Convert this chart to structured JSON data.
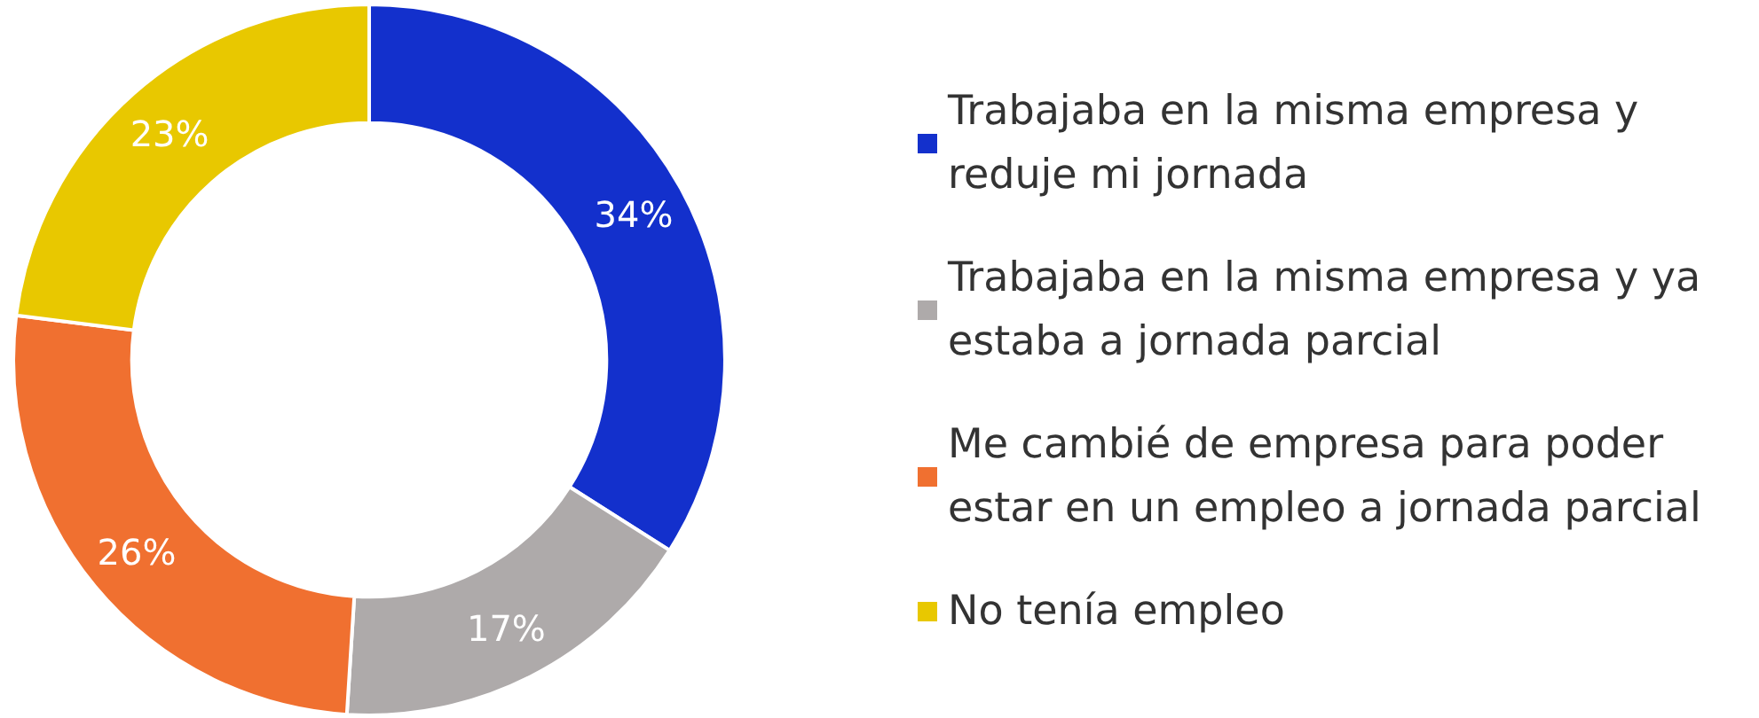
{
  "chart_data": {
    "type": "donut",
    "categories": [
      "Trabajaba en la misma empresa y reduje mi jornada",
      "Trabajaba en la misma empresa y ya estaba a jornada parcial",
      "Me cambié de empresa para poder estar en un empleo a jornada parcial",
      "No tenía empleo"
    ],
    "values": [
      34,
      17,
      26,
      23
    ],
    "colors": [
      "#1330cc",
      "#aeaaaa",
      "#f07030",
      "#e8c800"
    ],
    "value_labels": [
      "34%",
      "17%",
      "26%",
      "23%"
    ],
    "legend": "right"
  }
}
